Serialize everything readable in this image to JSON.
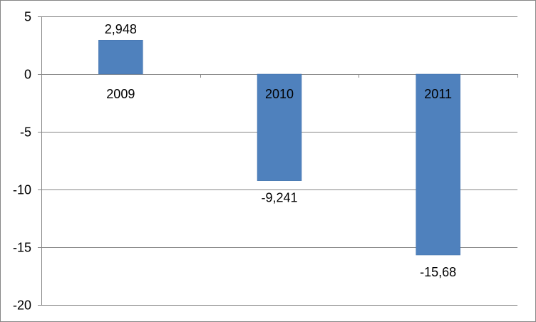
{
  "chart_data": {
    "type": "bar",
    "categories": [
      "2009",
      "2010",
      "2011"
    ],
    "values": [
      2.948,
      -9.241,
      -15.68
    ],
    "data_labels": [
      "2,948",
      "-9,241",
      "-15,68"
    ],
    "ylim": [
      -20,
      5
    ],
    "yticks": [
      5,
      0,
      -5,
      -10,
      -15,
      -20
    ],
    "ytick_labels": [
      "5",
      "0",
      "-5",
      "-10",
      "-15",
      "-20"
    ],
    "grid": true,
    "legend": "none",
    "title": "",
    "xlabel": "",
    "ylabel": "",
    "colors": {
      "bar": "#4F81BD",
      "bar_edge": "#3F6FA8",
      "gridline": "#868686",
      "axis": "#868686",
      "text": "#000000"
    }
  }
}
